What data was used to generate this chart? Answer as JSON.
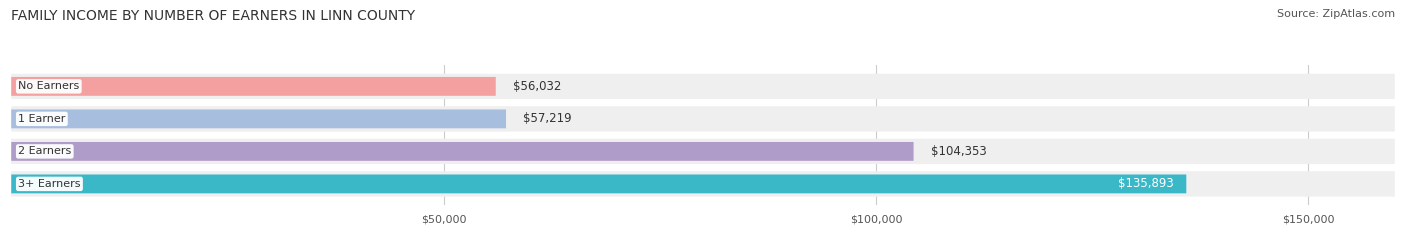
{
  "title": "FAMILY INCOME BY NUMBER OF EARNERS IN LINN COUNTY",
  "source": "Source: ZipAtlas.com",
  "categories": [
    "No Earners",
    "1 Earner",
    "2 Earners",
    "3+ Earners"
  ],
  "values": [
    56032,
    57219,
    104353,
    135893
  ],
  "bar_colors": [
    "#f4a0a0",
    "#a8bede",
    "#b09cc8",
    "#3ab8c8"
  ],
  "label_colors": [
    "#333333",
    "#333333",
    "#333333",
    "#ffffff"
  ],
  "xlim": [
    0,
    160000
  ],
  "xticks": [
    50000,
    100000,
    150000
  ],
  "xtick_labels": [
    "$50,000",
    "$100,000",
    "$150,000"
  ],
  "title_fontsize": 10,
  "source_fontsize": 8,
  "bar_label_fontsize": 8.5,
  "category_fontsize": 8,
  "tick_fontsize": 8
}
